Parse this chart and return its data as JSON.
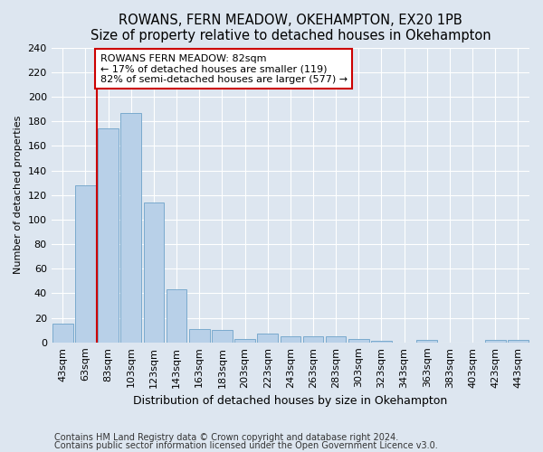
{
  "title1": "ROWANS, FERN MEADOW, OKEHAMPTON, EX20 1PB",
  "title2": "Size of property relative to detached houses in Okehampton",
  "xlabel": "Distribution of detached houses by size in Okehampton",
  "ylabel": "Number of detached properties",
  "categories": [
    "43sqm",
    "63sqm",
    "83sqm",
    "103sqm",
    "123sqm",
    "143sqm",
    "163sqm",
    "183sqm",
    "203sqm",
    "223sqm",
    "243sqm",
    "263sqm",
    "283sqm",
    "303sqm",
    "323sqm",
    "343sqm",
    "363sqm",
    "383sqm",
    "403sqm",
    "423sqm",
    "443sqm"
  ],
  "values": [
    15,
    128,
    174,
    187,
    114,
    43,
    11,
    10,
    3,
    7,
    5,
    5,
    5,
    3,
    1,
    0,
    2,
    0,
    0,
    2,
    2
  ],
  "bar_color": "#b8d0e8",
  "bar_edge_color": "#7aaace",
  "annotation_line1": "ROWANS FERN MEADOW: 82sqm",
  "annotation_line2": "← 17% of detached houses are smaller (119)",
  "annotation_line3": "82% of semi-detached houses are larger (577) →",
  "vline_x_index": 1.5,
  "vline_color": "#cc0000",
  "annotation_box_color": "#ffffff",
  "annotation_box_edge_color": "#cc0000",
  "footer1": "Contains HM Land Registry data © Crown copyright and database right 2024.",
  "footer2": "Contains public sector information licensed under the Open Government Licence v3.0.",
  "bg_color": "#dde6f0",
  "plot_bg_color": "#dde6f0",
  "ylim": [
    0,
    240
  ],
  "yticks": [
    0,
    20,
    40,
    60,
    80,
    100,
    120,
    140,
    160,
    180,
    200,
    220,
    240
  ],
  "title1_fontsize": 10.5,
  "title2_fontsize": 9.5,
  "xlabel_fontsize": 9,
  "ylabel_fontsize": 8,
  "tick_fontsize": 8,
  "footer_fontsize": 7,
  "annotation_fontsize": 8
}
